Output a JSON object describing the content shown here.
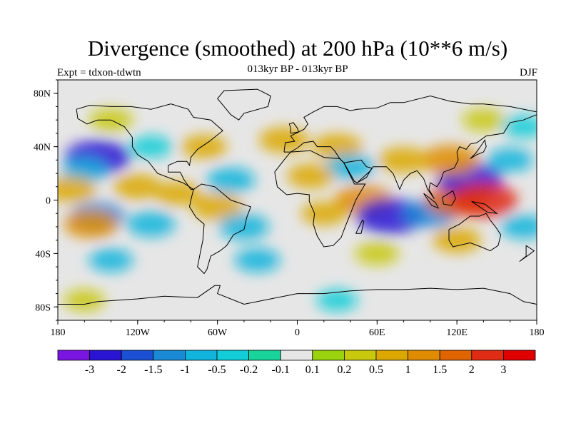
{
  "title": "Divergence (smoothed) at 200 hPa (10**6 m/s)",
  "subtitle": "013kyr BP - 013kyr BP",
  "experiment_label": "Expt = tdxon-tdwtn",
  "season": "DJF",
  "map": {
    "projection": "cylindrical-equidistant",
    "lon_range": [
      -180,
      180
    ],
    "lat_range": [
      -90,
      90
    ],
    "lat_ticks": [
      {
        "value": 80,
        "label": "80N"
      },
      {
        "value": 40,
        "label": "40N"
      },
      {
        "value": 0,
        "label": "0"
      },
      {
        "value": -40,
        "label": "40S"
      },
      {
        "value": -80,
        "label": "80S"
      }
    ],
    "lon_ticks": [
      {
        "value": -180,
        "label": "180"
      },
      {
        "value": -120,
        "label": "120W"
      },
      {
        "value": -60,
        "label": "60W"
      },
      {
        "value": 0,
        "label": "0"
      },
      {
        "value": 60,
        "label": "60E"
      },
      {
        "value": 120,
        "label": "120E"
      },
      {
        "value": 180,
        "label": "180"
      }
    ],
    "background_color": "#e6e6e6",
    "coastline_color": "#000000"
  },
  "colorbar": {
    "labels": [
      "-3",
      "-2",
      "-1.5",
      "-1",
      "-0.5",
      "-0.2",
      "-0.1",
      "0.1",
      "0.2",
      "0.5",
      "1",
      "1.5",
      "2",
      "3"
    ],
    "colors": [
      "#7a14e0",
      "#2a14d4",
      "#1c50d4",
      "#1a8ad6",
      "#10b4dc",
      "#12cdd8",
      "#18d49a",
      "#e6e6e6",
      "#9ad20e",
      "#c8c80c",
      "#dca800",
      "#e08c00",
      "#e06400",
      "#e02c14",
      "#e00000"
    ]
  },
  "chart_data": {
    "type": "heatmap",
    "title": "Divergence (smoothed) at 200 hPa (10**6 m/s)",
    "units": "10**6 m/s",
    "contour_levels": [
      -3,
      -2,
      -1.5,
      -1,
      -0.5,
      -0.2,
      -0.1,
      0.1,
      0.2,
      0.5,
      1,
      1.5,
      2,
      3
    ],
    "field_blobs": [
      {
        "lon": -150,
        "lat": 32,
        "value": -2.0
      },
      {
        "lon": -160,
        "lat": 22,
        "value": -0.6
      },
      {
        "lon": -110,
        "lat": 40,
        "value": -0.4
      },
      {
        "lon": -170,
        "lat": 8,
        "value": 0.9
      },
      {
        "lon": -120,
        "lat": 10,
        "value": 0.8
      },
      {
        "lon": -150,
        "lat": -12,
        "value": -1.2
      },
      {
        "lon": -155,
        "lat": -18,
        "value": 1.2
      },
      {
        "lon": -110,
        "lat": -18,
        "value": -0.8
      },
      {
        "lon": -90,
        "lat": 5,
        "value": 0.6
      },
      {
        "lon": -60,
        "lat": -5,
        "value": 1.0
      },
      {
        "lon": -50,
        "lat": 15,
        "value": -0.8
      },
      {
        "lon": -40,
        "lat": -20,
        "value": -0.9
      },
      {
        "lon": -70,
        "lat": 40,
        "value": 0.6
      },
      {
        "lon": -10,
        "lat": 45,
        "value": 0.9
      },
      {
        "lon": 30,
        "lat": 40,
        "value": 0.9
      },
      {
        "lon": 40,
        "lat": 25,
        "value": -0.8
      },
      {
        "lon": 10,
        "lat": 18,
        "value": 0.7
      },
      {
        "lon": 50,
        "lat": 0,
        "value": 1.5
      },
      {
        "lon": 20,
        "lat": -10,
        "value": 0.6
      },
      {
        "lon": 70,
        "lat": -12,
        "value": -2.2
      },
      {
        "lon": 100,
        "lat": -10,
        "value": -1.2
      },
      {
        "lon": 120,
        "lat": 0,
        "value": 1.8
      },
      {
        "lon": 130,
        "lat": 15,
        "value": -2.0
      },
      {
        "lon": 140,
        "lat": 0,
        "value": 2.2
      },
      {
        "lon": 115,
        "lat": 30,
        "value": 1.5
      },
      {
        "lon": 80,
        "lat": 30,
        "value": 0.9
      },
      {
        "lon": 160,
        "lat": 30,
        "value": -0.6
      },
      {
        "lon": 170,
        "lat": -20,
        "value": -0.6
      },
      {
        "lon": 120,
        "lat": -30,
        "value": 0.8
      },
      {
        "lon": 60,
        "lat": -40,
        "value": 0.5
      },
      {
        "lon": -30,
        "lat": -45,
        "value": -0.6
      },
      {
        "lon": -140,
        "lat": -45,
        "value": -0.5
      },
      {
        "lon": -160,
        "lat": -75,
        "value": 0.3
      },
      {
        "lon": 30,
        "lat": -75,
        "value": -0.3
      },
      {
        "lon": 140,
        "lat": 60,
        "value": 0.4
      },
      {
        "lon": -140,
        "lat": 60,
        "value": 0.5
      },
      {
        "lon": 170,
        "lat": 55,
        "value": -0.4
      }
    ]
  }
}
